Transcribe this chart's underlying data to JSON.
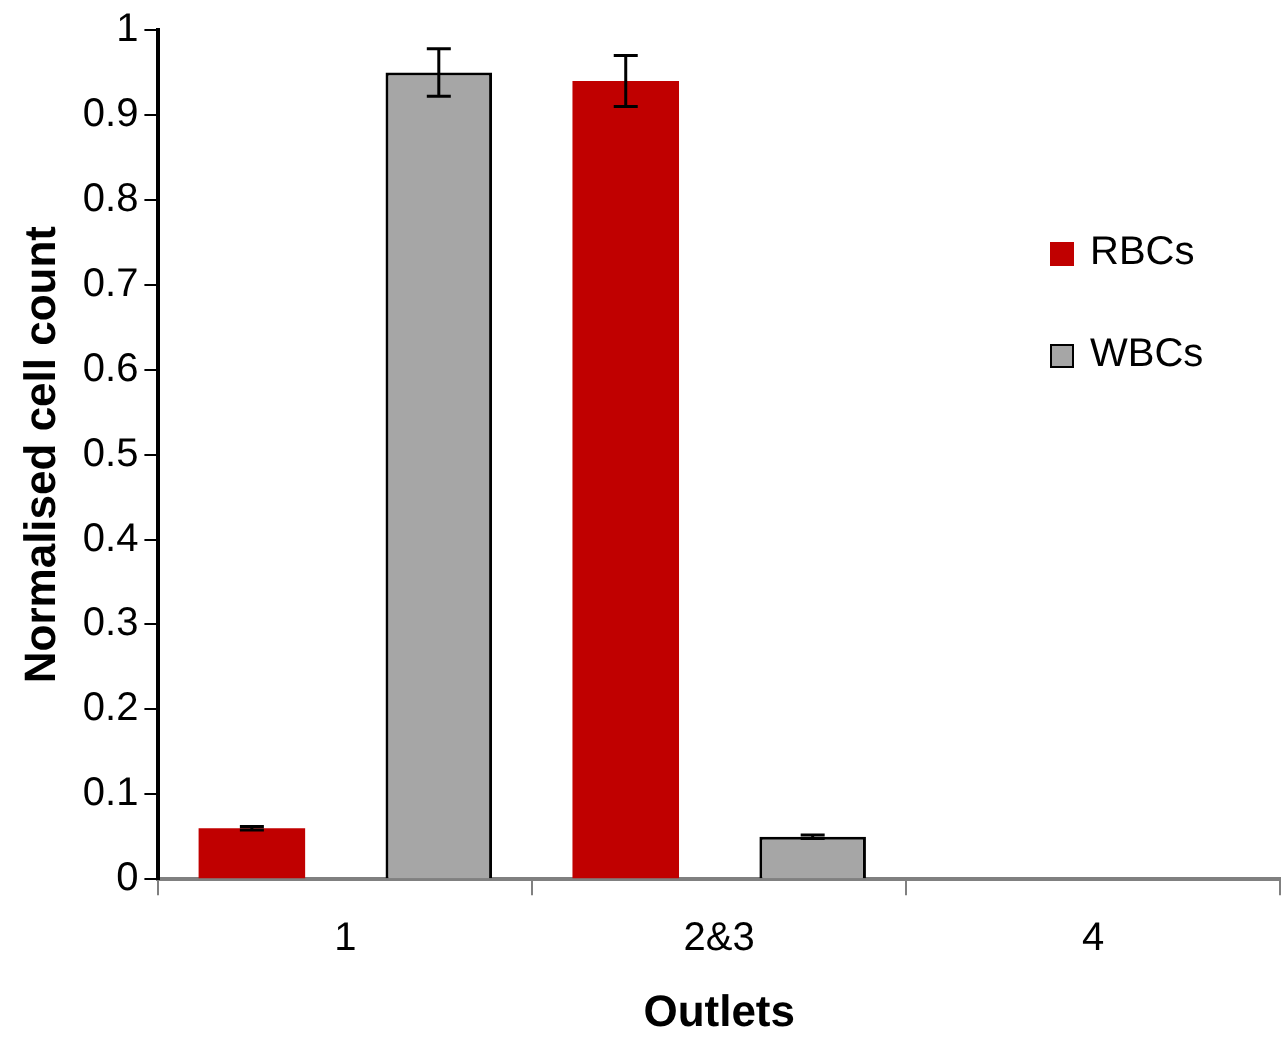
{
  "chart_data": {
    "type": "bar",
    "xlabel": "Outlets",
    "ylabel": "Normalised cell count",
    "categories": [
      "1",
      "2&3",
      "4"
    ],
    "series": [
      {
        "name": "RBCs",
        "color": "#c00000",
        "values": [
          0.06,
          0.94,
          0
        ],
        "errors": [
          0.002,
          0.03,
          null
        ]
      },
      {
        "name": "WBCs",
        "color": "#a6a6a6",
        "values": [
          0.95,
          0.05,
          0
        ],
        "errors": [
          0.028,
          0.002,
          null
        ]
      }
    ],
    "ylim": [
      0,
      1
    ],
    "yticks": [
      0,
      0.1,
      0.2,
      0.3,
      0.4,
      0.5,
      0.6,
      0.7,
      0.8,
      0.9,
      1
    ],
    "grid": false,
    "legend": "right"
  }
}
